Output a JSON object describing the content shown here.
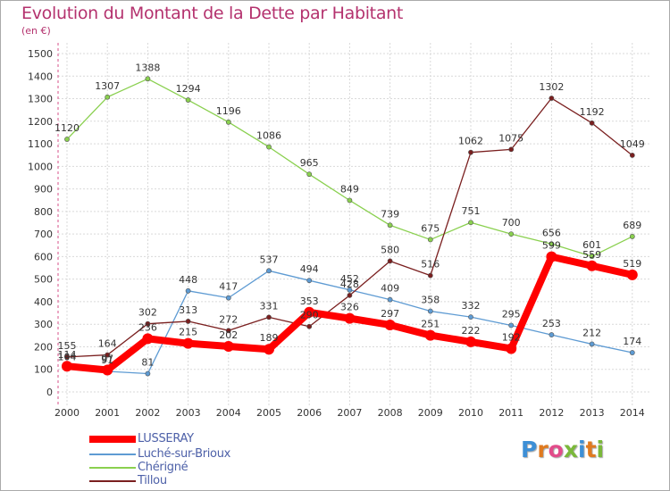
{
  "title": "Evolution du Montant de la Dette par Habitant",
  "subtitle": "(en €)",
  "brand": {
    "letters": [
      "P",
      "r",
      "o",
      "x",
      "i",
      "t",
      "i"
    ],
    "colors": [
      "#3d8fd6",
      "#e07a1f",
      "#e24c8a",
      "#7ab83a",
      "#3d8fd6",
      "#e07a1f",
      "#7ab83a"
    ]
  },
  "chart_data": {
    "type": "line",
    "x": [
      "2000",
      "2001",
      "2002",
      "2003",
      "2004",
      "2005",
      "2006",
      "2007",
      "2008",
      "2009",
      "2010",
      "2011",
      "2012",
      "2013",
      "2014"
    ],
    "ylim": [
      0,
      1500
    ],
    "yticks": [
      0,
      100,
      200,
      300,
      400,
      500,
      600,
      700,
      800,
      900,
      1000,
      1100,
      1200,
      1300,
      1400,
      1500
    ],
    "grid": true,
    "legend_position": "bottom-left",
    "series": [
      {
        "name": "LUSSERAY",
        "color": "#ff0000",
        "width": 8,
        "point": 6,
        "values": [
          114,
          97,
          236,
          215,
          202,
          189,
          353,
          326,
          297,
          251,
          222,
          192,
          599,
          559,
          519
        ],
        "labels": [
          "114",
          "97",
          "236",
          "215",
          "202",
          "189",
          "353",
          "326",
          "297",
          "251",
          "222",
          "192",
          "599",
          "559",
          "519"
        ]
      },
      {
        "name": "Luché-sur-Brioux",
        "color": "#5e9bd3",
        "width": 1.3,
        "point": 2.6,
        "values": [
          104,
          91,
          81,
          448,
          417,
          537,
          494,
          452,
          409,
          358,
          332,
          295,
          253,
          212,
          174
        ],
        "labels": [
          "104",
          "91",
          "81",
          "448",
          "417",
          "537",
          "494",
          "452",
          "409",
          "358",
          "332",
          "295",
          "253",
          "212",
          "174"
        ]
      },
      {
        "name": "Chérigné",
        "color": "#8ad04f",
        "width": 1.3,
        "point": 2.6,
        "values": [
          1120,
          1307,
          1388,
          1294,
          1196,
          1086,
          965,
          849,
          739,
          675,
          751,
          700,
          656,
          601,
          689
        ],
        "labels": [
          "1120",
          "1307",
          "1388",
          "1294",
          "1196",
          "1086",
          "965",
          "849",
          "739",
          "675",
          "751",
          "700",
          "656",
          "601",
          "689"
        ]
      },
      {
        "name": "Tillou",
        "color": "#7a1f1f",
        "width": 1.3,
        "point": 2.6,
        "values": [
          155,
          164,
          302,
          313,
          272,
          331,
          290,
          428,
          580,
          516,
          1062,
          1075,
          1302,
          1192,
          1049
        ],
        "labels": [
          "155",
          "164",
          "302",
          "313",
          "272",
          "331",
          "290",
          "428",
          "580",
          "516",
          "1062",
          "1075",
          "1302",
          "1192",
          "1049"
        ]
      }
    ]
  }
}
